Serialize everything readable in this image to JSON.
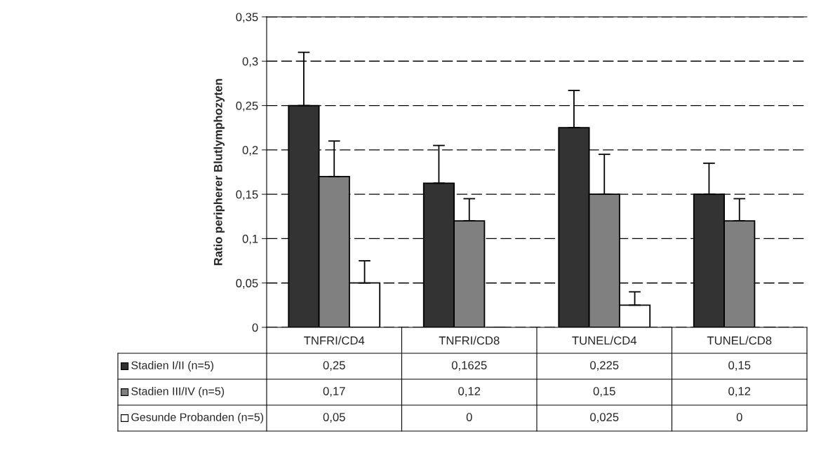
{
  "chart_data": {
    "type": "bar",
    "ylabel": "Ratio peripherer Blutlymphozyten",
    "categories": [
      "TNFRI/CD4",
      "TNFRI/CD8",
      "TUNEL/CD4",
      "TUNEL/CD8"
    ],
    "series": [
      {
        "name": "Stadien I/II (n=5)",
        "color": "#333333",
        "values": [
          0.25,
          0.1625,
          0.225,
          0.15
        ],
        "value_labels": [
          "0,25",
          "0,1625",
          "0,225",
          "0,15"
        ],
        "errors": [
          [
            0.25,
            0.31
          ],
          [
            0.1625,
            0.205
          ],
          [
            0.225,
            0.267
          ],
          [
            0.15,
            0.185
          ]
        ]
      },
      {
        "name": "Stadien III/IV (n=5)",
        "color": "#808080",
        "values": [
          0.17,
          0.12,
          0.15,
          0.12
        ],
        "value_labels": [
          "0,17",
          "0,12",
          "0,15",
          "0,12"
        ],
        "errors": [
          [
            0.17,
            0.21
          ],
          [
            0.12,
            0.145
          ],
          [
            0.15,
            0.195
          ],
          [
            0.12,
            0.145
          ]
        ]
      },
      {
        "name": "Gesunde Probanden (n=5)",
        "color": "#ffffff",
        "values": [
          0.05,
          0,
          0.025,
          0
        ],
        "value_labels": [
          "0,05",
          "0",
          "0,025",
          "0"
        ],
        "errors": [
          [
            0.05,
            0.075
          ],
          [
            0,
            0
          ],
          [
            0.025,
            0.04
          ],
          [
            0,
            0
          ]
        ]
      }
    ],
    "ylim": [
      0,
      0.35
    ],
    "yticks": [
      0,
      {
        "value": 0.05,
        "label": "0,05"
      },
      {
        "value": 0.1,
        "label": "0,1"
      },
      {
        "value": 0.15,
        "label": "0,15"
      },
      {
        "value": 0.2,
        "label": "0,2"
      },
      {
        "value": 0.25,
        "label": "0,25"
      },
      {
        "value": 0.3,
        "label": "0,3"
      },
      {
        "value": 0.35,
        "label": "0,35"
      }
    ],
    "grid": "y",
    "legend": "bottom"
  }
}
